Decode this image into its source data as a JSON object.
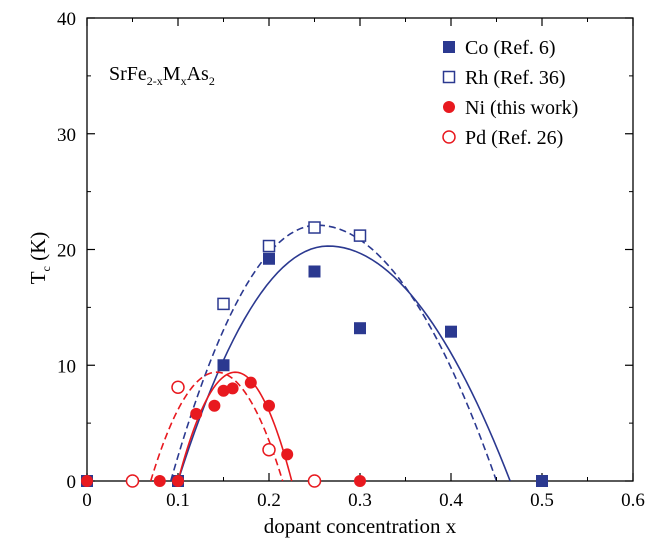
{
  "chart_data": {
    "type": "scatter",
    "title": "",
    "xlabel": "dopant concentration x",
    "ylabel_main": "T",
    "ylabel_sub": "c",
    "ylabel_unit": " (K)",
    "xlim": [
      0,
      0.6
    ],
    "ylim": [
      0,
      40
    ],
    "xticks": [
      0,
      0.1,
      0.2,
      0.3,
      0.4,
      0.5,
      0.6
    ],
    "xtick_labels": [
      "0",
      "0.1",
      "0.2",
      "0.3",
      "0.4",
      "0.5",
      "0.6"
    ],
    "yticks": [
      0,
      10,
      20,
      30,
      40
    ],
    "ytick_labels": [
      "0",
      "10",
      "20",
      "30",
      "40"
    ],
    "grid": false,
    "legend_position": "top-right",
    "annotation": {
      "parts": [
        {
          "text": "SrFe",
          "sub": false
        },
        {
          "text": "2-x",
          "sub": true
        },
        {
          "text": "M",
          "sub": false
        },
        {
          "text": "x",
          "sub": true
        },
        {
          "text": "As",
          "sub": false
        },
        {
          "text": "2",
          "sub": true
        }
      ]
    },
    "series": [
      {
        "name": "Co (Ref. 6)",
        "marker": "square-filled",
        "color": "#2b3990",
        "points": [
          [
            0,
            0
          ],
          [
            0.1,
            0
          ],
          [
            0.15,
            10
          ],
          [
            0.2,
            19.2
          ],
          [
            0.25,
            18.1
          ],
          [
            0.3,
            13.2
          ],
          [
            0.4,
            12.9
          ],
          [
            0.5,
            0
          ]
        ],
        "fit": {
          "style": "solid",
          "x0": 0.1,
          "x1": 0.465,
          "peak_x": 0.265,
          "peak_y": 20.3
        }
      },
      {
        "name": "Rh (Ref. 36)",
        "marker": "square-open",
        "color": "#2b3990",
        "points": [
          [
            0.15,
            15.3
          ],
          [
            0.2,
            20.3
          ],
          [
            0.25,
            21.9
          ],
          [
            0.3,
            21.2
          ]
        ],
        "fit": {
          "style": "dashed",
          "x0": 0.092,
          "x1": 0.45,
          "peak_x": 0.253,
          "peak_y": 22.1
        }
      },
      {
        "name": "Ni (this work)",
        "marker": "circle-filled",
        "color": "#e8191f",
        "points": [
          [
            0,
            0
          ],
          [
            0.08,
            0
          ],
          [
            0.1,
            0
          ],
          [
            0.12,
            5.8
          ],
          [
            0.14,
            6.5
          ],
          [
            0.15,
            7.8
          ],
          [
            0.16,
            8.0
          ],
          [
            0.18,
            8.5
          ],
          [
            0.2,
            6.5
          ],
          [
            0.22,
            2.3
          ],
          [
            0.3,
            0
          ]
        ],
        "fit": {
          "style": "solid",
          "x0": 0.1,
          "x1": 0.225,
          "peak_x": 0.163,
          "peak_y": 9.4
        }
      },
      {
        "name": "Pd (Ref. 26)",
        "marker": "circle-open",
        "color": "#e8191f",
        "points": [
          [
            0.05,
            0
          ],
          [
            0.1,
            8.1
          ],
          [
            0.2,
            2.7
          ],
          [
            0.25,
            0
          ]
        ],
        "fit": {
          "style": "dashed",
          "x0": 0.07,
          "x1": 0.215,
          "peak_x": 0.1425,
          "peak_y": 9.4
        }
      }
    ]
  }
}
